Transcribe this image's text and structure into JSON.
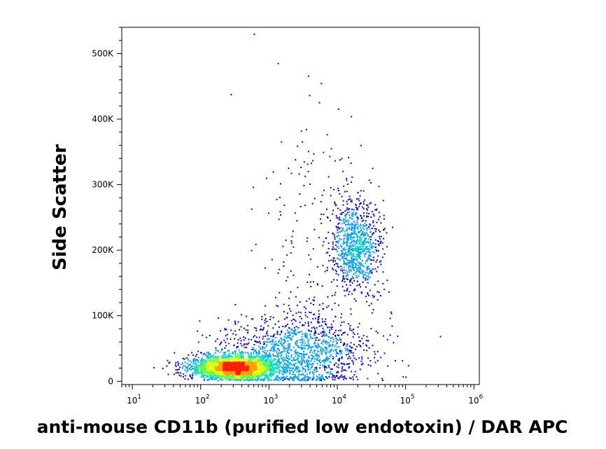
{
  "chart_data": {
    "type": "scatter",
    "subtype": "flow-cytometry density dot plot",
    "title": "",
    "xlabel": "anti-mouse CD11b (purified low endotoxin) / DAR APC",
    "ylabel": "Side Scatter",
    "x_scale": "log",
    "xlim": [
      7,
      1200000
    ],
    "ylim": [
      -5000,
      540000
    ],
    "x_ticks": [
      {
        "value": 10,
        "base": "10",
        "exp": "1"
      },
      {
        "value": 100,
        "base": "10",
        "exp": "2"
      },
      {
        "value": 1000,
        "base": "10",
        "exp": "3"
      },
      {
        "value": 10000,
        "base": "10",
        "exp": "4"
      },
      {
        "value": 100000,
        "base": "10",
        "exp": "5"
      },
      {
        "value": 1000000,
        "base": "10",
        "exp": "6"
      }
    ],
    "y_ticks": [
      {
        "value": 0,
        "label": "0"
      },
      {
        "value": 100000,
        "label": "100K"
      },
      {
        "value": 200000,
        "label": "200K"
      },
      {
        "value": 300000,
        "label": "300K"
      },
      {
        "value": 400000,
        "label": "400K"
      },
      {
        "value": 500000,
        "label": "500K"
      }
    ],
    "density_colors": [
      "#0000ff",
      "#00a0ff",
      "#00e0c0",
      "#60ff40",
      "#e0ff00",
      "#ffa000",
      "#ff2000"
    ],
    "populations": [
      {
        "name": "",
        "center_x": 300,
        "center_y": 22000,
        "count": 2600,
        "spread_log10_x": 0.32,
        "spread_y": 9000
      },
      {
        "name": "",
        "center_x": 2500,
        "center_y": 45000,
        "count": 1400,
        "spread_log10_x": 0.55,
        "spread_y": 30000
      },
      {
        "name": "",
        "center_x": 18000,
        "center_y": 210000,
        "count": 900,
        "spread_log10_x": 0.18,
        "spread_y": 35000
      },
      {
        "name": "",
        "center_x": 4000,
        "center_y": 220000,
        "count": 160,
        "spread_log10_x": 0.4,
        "spread_y": 110000
      }
    ],
    "grid": false,
    "legend": "none"
  }
}
